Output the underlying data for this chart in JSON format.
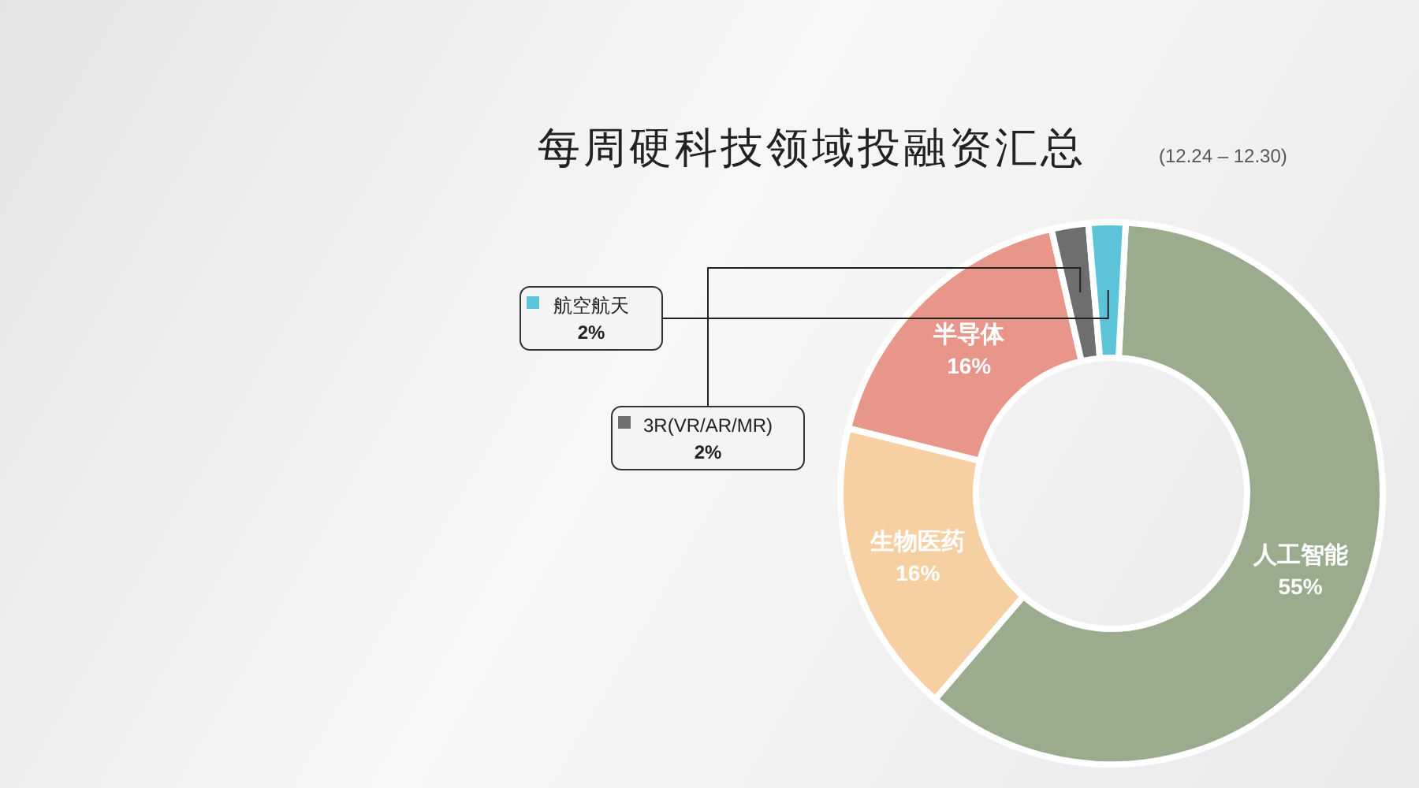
{
  "chart_data": {
    "type": "donut",
    "title": "每周硬科技领域投融资汇总",
    "subtitle": "(12.24 – 12.30)",
    "categories": [
      "人工智能",
      "生物医药",
      "半导体",
      "3R(VR/AR/MR)",
      "航空航天"
    ],
    "values": [
      55,
      16,
      16,
      2,
      2
    ],
    "colors": [
      "#9aab8e",
      "#f6d0a2",
      "#e8958a",
      "#6e6e6e",
      "#5cc4d8"
    ],
    "value_labels": [
      "55%",
      "16%",
      "16%",
      "2%",
      "2%"
    ],
    "legend": "left"
  }
}
